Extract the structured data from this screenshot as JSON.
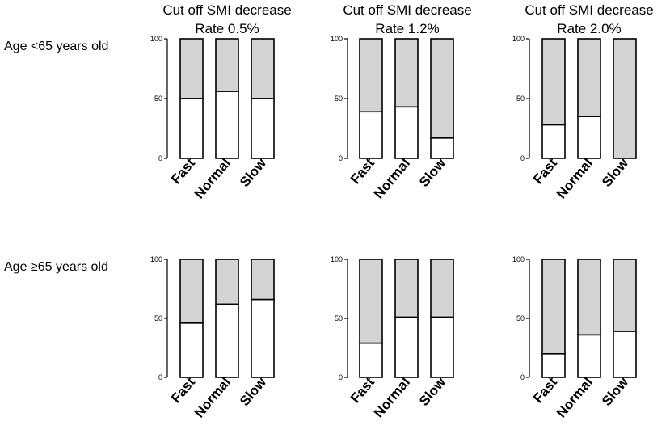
{
  "figure": {
    "column_titles": [
      {
        "line1": "Cut off SMI decrease",
        "line2": "Rate 0.5%"
      },
      {
        "line1": "Cut off SMI decrease",
        "line2": "Rate 1.2%"
      },
      {
        "line1": "Cut off SMI decrease",
        "line2": "Rate 2.0%"
      }
    ],
    "row_labels": [
      "Age <65 years old",
      "Age ≥65 years old"
    ],
    "colors": {
      "lower_segment": "#ffffff",
      "upper_segment": "#d3d3d3",
      "stroke": "#000000"
    }
  },
  "chart_data": [
    {
      "type": "bar",
      "stacked": true,
      "row": "Age <65 years old",
      "title": "Cut off SMI decrease Rate 0.5%",
      "categories": [
        "Fast",
        "Normal",
        "Slow"
      ],
      "values": [
        50,
        56,
        50
      ],
      "ylim": [
        0,
        100
      ],
      "yticks": [
        "0",
        "50",
        "100"
      ],
      "xlabel": "",
      "ylabel": "",
      "series": [
        {
          "name": "lower",
          "values": [
            50,
            56,
            50
          ]
        },
        {
          "name": "upper",
          "values": [
            50,
            44,
            50
          ]
        }
      ]
    },
    {
      "type": "bar",
      "stacked": true,
      "row": "Age <65 years old",
      "title": "Cut off SMI decrease Rate 1.2%",
      "categories": [
        "Fast",
        "Normal",
        "Slow"
      ],
      "values": [
        39,
        43,
        17
      ],
      "ylim": [
        0,
        100
      ],
      "yticks": [
        "0",
        "50",
        "100"
      ],
      "xlabel": "",
      "ylabel": "",
      "series": [
        {
          "name": "lower",
          "values": [
            39,
            43,
            17
          ]
        },
        {
          "name": "upper",
          "values": [
            61,
            57,
            83
          ]
        }
      ]
    },
    {
      "type": "bar",
      "stacked": true,
      "row": "Age <65 years old",
      "title": "Cut off SMI decrease Rate 2.0%",
      "categories": [
        "Fast",
        "Normal",
        "Slow"
      ],
      "values": [
        28,
        35,
        0
      ],
      "ylim": [
        0,
        100
      ],
      "yticks": [
        "0",
        "50",
        "100"
      ],
      "xlabel": "",
      "ylabel": "",
      "series": [
        {
          "name": "lower",
          "values": [
            28,
            35,
            0
          ]
        },
        {
          "name": "upper",
          "values": [
            72,
            65,
            100
          ]
        }
      ]
    },
    {
      "type": "bar",
      "stacked": true,
      "row": "Age ≥65 years old",
      "title": "Cut off SMI decrease Rate 0.5%",
      "categories": [
        "Fast",
        "Normal",
        "Slow"
      ],
      "values": [
        46,
        62,
        66
      ],
      "ylim": [
        0,
        100
      ],
      "yticks": [
        "0",
        "50",
        "100"
      ],
      "xlabel": "",
      "ylabel": "",
      "series": [
        {
          "name": "lower",
          "values": [
            46,
            62,
            66
          ]
        },
        {
          "name": "upper",
          "values": [
            54,
            38,
            34
          ]
        }
      ]
    },
    {
      "type": "bar",
      "stacked": true,
      "row": "Age ≥65 years old",
      "title": "Cut off SMI decrease Rate 1.2%",
      "categories": [
        "Fast",
        "Normal",
        "Slow"
      ],
      "values": [
        29,
        51,
        51
      ],
      "ylim": [
        0,
        100
      ],
      "yticks": [
        "0",
        "50",
        "100"
      ],
      "xlabel": "",
      "ylabel": "",
      "series": [
        {
          "name": "lower",
          "values": [
            29,
            51,
            51
          ]
        },
        {
          "name": "upper",
          "values": [
            71,
            49,
            49
          ]
        }
      ]
    },
    {
      "type": "bar",
      "stacked": true,
      "row": "Age ≥65 years old",
      "title": "Cut off SMI decrease Rate 2.0%",
      "categories": [
        "Fast",
        "Normal",
        "Slow"
      ],
      "values": [
        20,
        36,
        39
      ],
      "ylim": [
        0,
        100
      ],
      "yticks": [
        "0",
        "50",
        "100"
      ],
      "xlabel": "",
      "ylabel": "",
      "series": [
        {
          "name": "lower",
          "values": [
            20,
            36,
            39
          ]
        },
        {
          "name": "upper",
          "values": [
            80,
            64,
            61
          ]
        }
      ]
    }
  ]
}
